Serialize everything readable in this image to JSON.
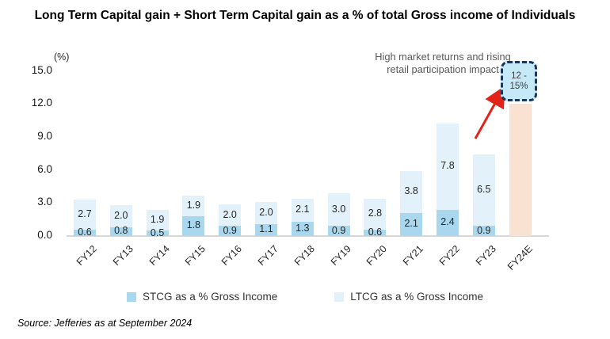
{
  "title": "Long Term Capital gain + Short Term Capital gain as a % of total Gross income of Individuals",
  "source": "Source: Jefferies as at September 2024",
  "annotation": {
    "text": "High market returns and rising retail participation impact",
    "callout_line1": "12 -",
    "callout_line2": "15%",
    "arrow_color": "#e2231a"
  },
  "legend": [
    {
      "label": "STCG as a % Gross Income",
      "color": "#a9d7ee"
    },
    {
      "label": "LTCG as a % Gross Income",
      "color": "#e3f1fb"
    }
  ],
  "chart_data": {
    "type": "bar",
    "stacked": true,
    "title": "Long Term Capital gain + Short Term Capital gain as a % of total Gross income of Individuals",
    "axis_unit": "(%)",
    "categories": [
      "FY12",
      "FY13",
      "FY14",
      "FY15",
      "FY16",
      "FY17",
      "FY18",
      "FY19",
      "FY20",
      "FY21",
      "FY22",
      "FY23",
      "FY24E"
    ],
    "series": [
      {
        "name": "STCG as a % Gross Income",
        "color": "#a9d7ee",
        "values": [
          0.6,
          0.8,
          0.5,
          1.8,
          0.9,
          1.1,
          1.3,
          0.9,
          0.6,
          2.1,
          2.4,
          0.9,
          null
        ]
      },
      {
        "name": "LTCG as a % Gross Income",
        "color": "#e3f1fb",
        "values": [
          2.7,
          2.0,
          1.9,
          1.9,
          2.0,
          2.0,
          2.1,
          3.0,
          2.8,
          3.8,
          7.8,
          6.5,
          null
        ]
      }
    ],
    "estimate_bar": {
      "category": "FY24E",
      "value": 12,
      "range_label": "12 - 15%",
      "color": "#f9e2d2"
    },
    "ytick_labels": [
      "0.0",
      "3.0",
      "6.0",
      "9.0",
      "12.0",
      "15.0"
    ],
    "ylim": [
      0,
      15
    ],
    "grid": false,
    "legend_position": "bottom",
    "annotation_text": "High market returns and rising retail participation impact"
  }
}
